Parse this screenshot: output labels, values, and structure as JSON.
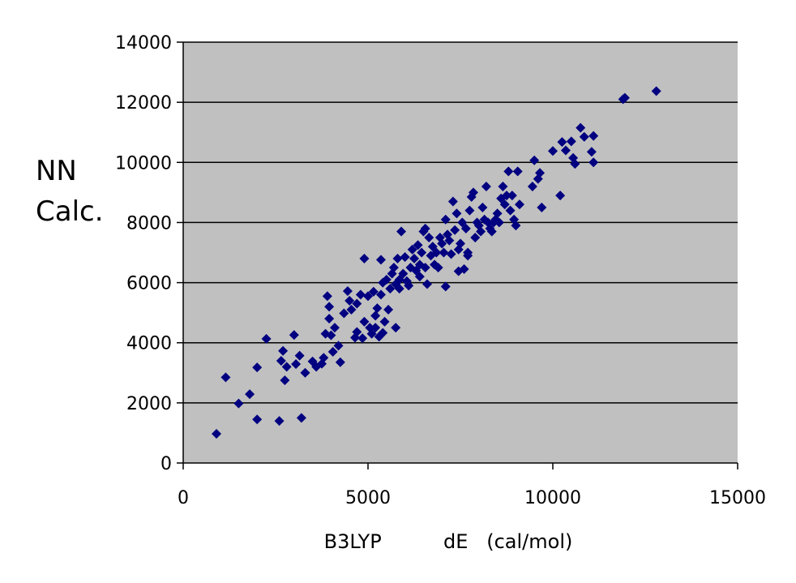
{
  "chart_data": {
    "type": "scatter",
    "title": "",
    "xlabel": "B3LYP          dE   (cal/mol)",
    "ylabel_lines": [
      "NN",
      "Calc."
    ],
    "xlim": [
      0,
      15000
    ],
    "ylim": [
      0,
      14000
    ],
    "x_ticks": [
      0,
      5000,
      10000,
      15000
    ],
    "y_ticks": [
      0,
      2000,
      4000,
      6000,
      8000,
      10000,
      12000,
      14000
    ],
    "x_tick_labels": [
      "0",
      "5000",
      "10000",
      "15000"
    ],
    "y_tick_labels": [
      "0",
      "2000",
      "4000",
      "6000",
      "8000",
      "10000",
      "12000",
      "14000"
    ],
    "grid": "horizontal",
    "legend": "none",
    "colors": {
      "plot_background": "#c0c0c0",
      "marker": "#000080",
      "gridline": "#000000"
    },
    "marker": "diamond",
    "series": [
      {
        "points": [
          [
            900,
            970
          ],
          [
            1150,
            2850
          ],
          [
            1500,
            1980
          ],
          [
            1800,
            2290
          ],
          [
            2000,
            1450
          ],
          [
            2000,
            3180
          ],
          [
            2250,
            4130
          ],
          [
            2600,
            1400
          ],
          [
            2650,
            3400
          ],
          [
            2700,
            3730
          ],
          [
            2750,
            2750
          ],
          [
            2800,
            3200
          ],
          [
            3000,
            4260
          ],
          [
            3050,
            3290
          ],
          [
            3150,
            3570
          ],
          [
            3200,
            1500
          ],
          [
            3300,
            3000
          ],
          [
            3500,
            3380
          ],
          [
            3600,
            3200
          ],
          [
            3750,
            3300
          ],
          [
            3800,
            3500
          ],
          [
            3850,
            4300
          ],
          [
            3900,
            5550
          ],
          [
            3950,
            5200
          ],
          [
            3950,
            4800
          ],
          [
            4000,
            4250
          ],
          [
            4050,
            3700
          ],
          [
            4100,
            4500
          ],
          [
            4200,
            3900
          ],
          [
            4250,
            3350
          ],
          [
            4350,
            4980
          ],
          [
            4450,
            5720
          ],
          [
            4500,
            5400
          ],
          [
            4550,
            5100
          ],
          [
            4650,
            4170
          ],
          [
            4700,
            4360
          ],
          [
            4700,
            5300
          ],
          [
            4800,
            5600
          ],
          [
            4850,
            4150
          ],
          [
            4900,
            6800
          ],
          [
            4900,
            4700
          ],
          [
            5000,
            5550
          ],
          [
            5050,
            4500
          ],
          [
            5100,
            4300
          ],
          [
            5150,
            5700
          ],
          [
            5200,
            4500
          ],
          [
            5200,
            4900
          ],
          [
            5250,
            5150
          ],
          [
            5300,
            4200
          ],
          [
            5350,
            6760
          ],
          [
            5350,
            5600
          ],
          [
            5400,
            4330
          ],
          [
            5400,
            6000
          ],
          [
            5450,
            4700
          ],
          [
            5500,
            6100
          ],
          [
            5550,
            5100
          ],
          [
            5600,
            5800
          ],
          [
            5650,
            6300
          ],
          [
            5700,
            6500
          ],
          [
            5750,
            5950
          ],
          [
            5750,
            4500
          ],
          [
            5800,
            6800
          ],
          [
            5850,
            6100
          ],
          [
            5850,
            5800
          ],
          [
            5900,
            7700
          ],
          [
            5950,
            6300
          ],
          [
            6000,
            6850
          ],
          [
            6050,
            6050
          ],
          [
            6100,
            5900
          ],
          [
            6150,
            6500
          ],
          [
            6200,
            7100
          ],
          [
            6250,
            6800
          ],
          [
            6300,
            6400
          ],
          [
            6350,
            7250
          ],
          [
            6400,
            6600
          ],
          [
            6400,
            6200
          ],
          [
            6450,
            7000
          ],
          [
            6500,
            7700
          ],
          [
            6550,
            7800
          ],
          [
            6550,
            6500
          ],
          [
            6600,
            5950
          ],
          [
            6650,
            7500
          ],
          [
            6700,
            6900
          ],
          [
            6750,
            7200
          ],
          [
            6800,
            6600
          ],
          [
            6850,
            7000
          ],
          [
            6900,
            6500
          ],
          [
            6950,
            7500
          ],
          [
            7000,
            7300
          ],
          [
            7050,
            7000
          ],
          [
            7100,
            5870
          ],
          [
            7100,
            8100
          ],
          [
            7150,
            7600
          ],
          [
            7200,
            7400
          ],
          [
            7250,
            6950
          ],
          [
            7300,
            8700
          ],
          [
            7350,
            7750
          ],
          [
            7400,
            8300
          ],
          [
            7450,
            7100
          ],
          [
            7450,
            6380
          ],
          [
            7500,
            7300
          ],
          [
            7550,
            8000
          ],
          [
            7600,
            6450
          ],
          [
            7650,
            7800
          ],
          [
            7700,
            7000
          ],
          [
            7700,
            6900
          ],
          [
            7750,
            8400
          ],
          [
            7800,
            8850
          ],
          [
            7850,
            9000
          ],
          [
            7900,
            7500
          ],
          [
            7950,
            8000
          ],
          [
            8000,
            7900
          ],
          [
            8050,
            7700
          ],
          [
            8100,
            8500
          ],
          [
            8150,
            8100
          ],
          [
            8200,
            9200
          ],
          [
            8250,
            8000
          ],
          [
            8300,
            7800
          ],
          [
            8350,
            7700
          ],
          [
            8400,
            8000
          ],
          [
            8450,
            8100
          ],
          [
            8500,
            8300
          ],
          [
            8550,
            8000
          ],
          [
            8600,
            8800
          ],
          [
            8650,
            9200
          ],
          [
            8700,
            8600
          ],
          [
            8750,
            8900
          ],
          [
            8800,
            9700
          ],
          [
            8850,
            8400
          ],
          [
            8900,
            8900
          ],
          [
            8950,
            8100
          ],
          [
            9000,
            7900
          ],
          [
            9050,
            9700
          ],
          [
            9100,
            8600
          ],
          [
            9450,
            9200
          ],
          [
            9500,
            10070
          ],
          [
            9600,
            9450
          ],
          [
            9650,
            9650
          ],
          [
            9700,
            8500
          ],
          [
            10000,
            10380
          ],
          [
            10200,
            8900
          ],
          [
            10250,
            10680
          ],
          [
            10350,
            10400
          ],
          [
            10500,
            10700
          ],
          [
            10550,
            10150
          ],
          [
            10600,
            9950
          ],
          [
            10750,
            11150
          ],
          [
            10850,
            10850
          ],
          [
            11050,
            10350
          ],
          [
            11100,
            10000
          ],
          [
            11100,
            10880
          ],
          [
            11900,
            12100
          ],
          [
            11950,
            12150
          ],
          [
            12800,
            12370
          ]
        ]
      }
    ]
  }
}
